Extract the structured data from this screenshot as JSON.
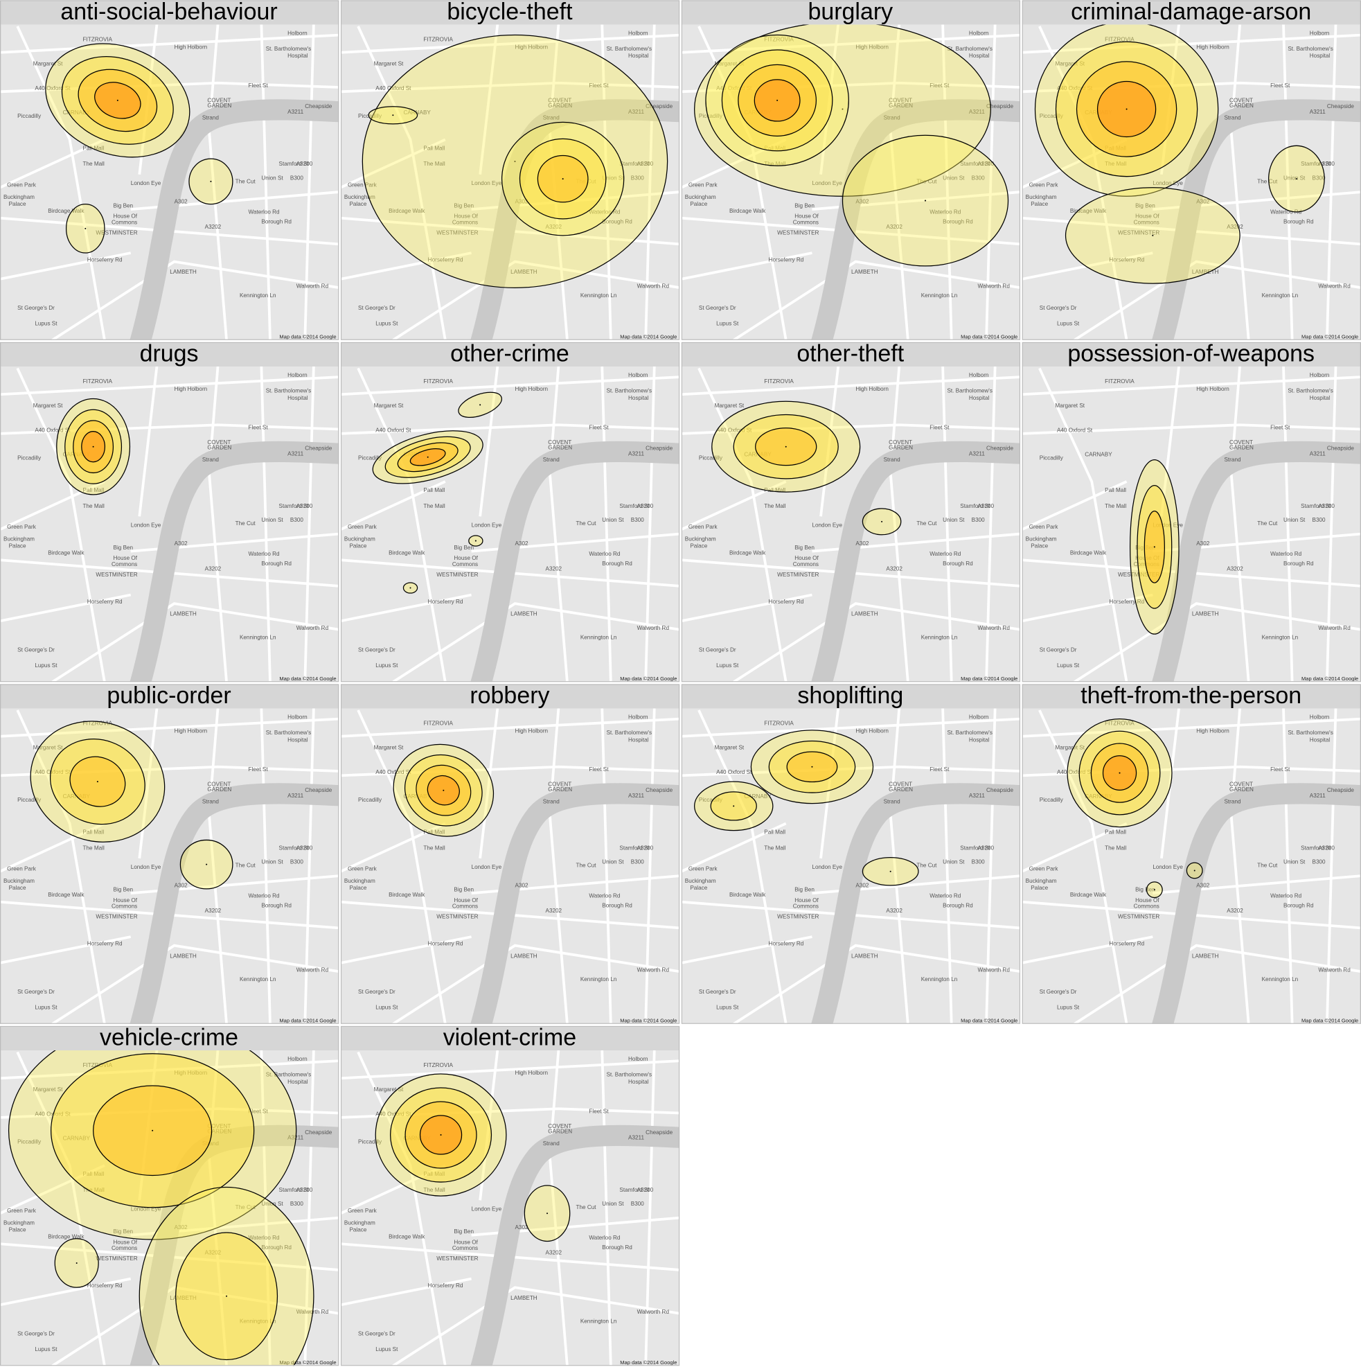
{
  "panels": [
    {
      "title": "anti-social-behaviour"
    },
    {
      "title": "bicycle-theft"
    },
    {
      "title": "burglary"
    },
    {
      "title": "criminal-damage-arson"
    },
    {
      "title": "drugs"
    },
    {
      "title": "other-crime"
    },
    {
      "title": "other-theft"
    },
    {
      "title": "possession-of-weapons"
    },
    {
      "title": "public-order"
    },
    {
      "title": "robbery"
    },
    {
      "title": "shoplifting"
    },
    {
      "title": "theft-from-the-person"
    },
    {
      "title": "vehicle-crime"
    },
    {
      "title": "violent-crime"
    }
  ],
  "map_labels": [
    "FITZROVIA",
    "High Holborn",
    "St. Bartholomew's",
    "Hospital",
    "Margaret St",
    "A40 Oxford St",
    "Fleet St",
    "Cheapside",
    "CARNABY",
    "COVENT",
    "GARDEN",
    "Strand",
    "Piccadilly",
    "Pall Mall",
    "Green Park",
    "London Eye",
    "Union St",
    "B300",
    "Buckingham",
    "Palace",
    "Big Ben",
    "House Of",
    "Commons",
    "WESTMINSTER",
    "Borough Rd",
    "LAMBETH",
    "Kennington Ln",
    "Lupus St",
    "The Mall",
    "Stamford St",
    "A3200",
    "A302",
    "Waterloo Rd",
    "A3211",
    "Holborn",
    "Birdcage Walk",
    "Walworth Rd",
    "A3202",
    "St George's Dr",
    "Horseferry Rd",
    "The Cut"
  ],
  "attribution": "Map data ©2014 Google"
}
